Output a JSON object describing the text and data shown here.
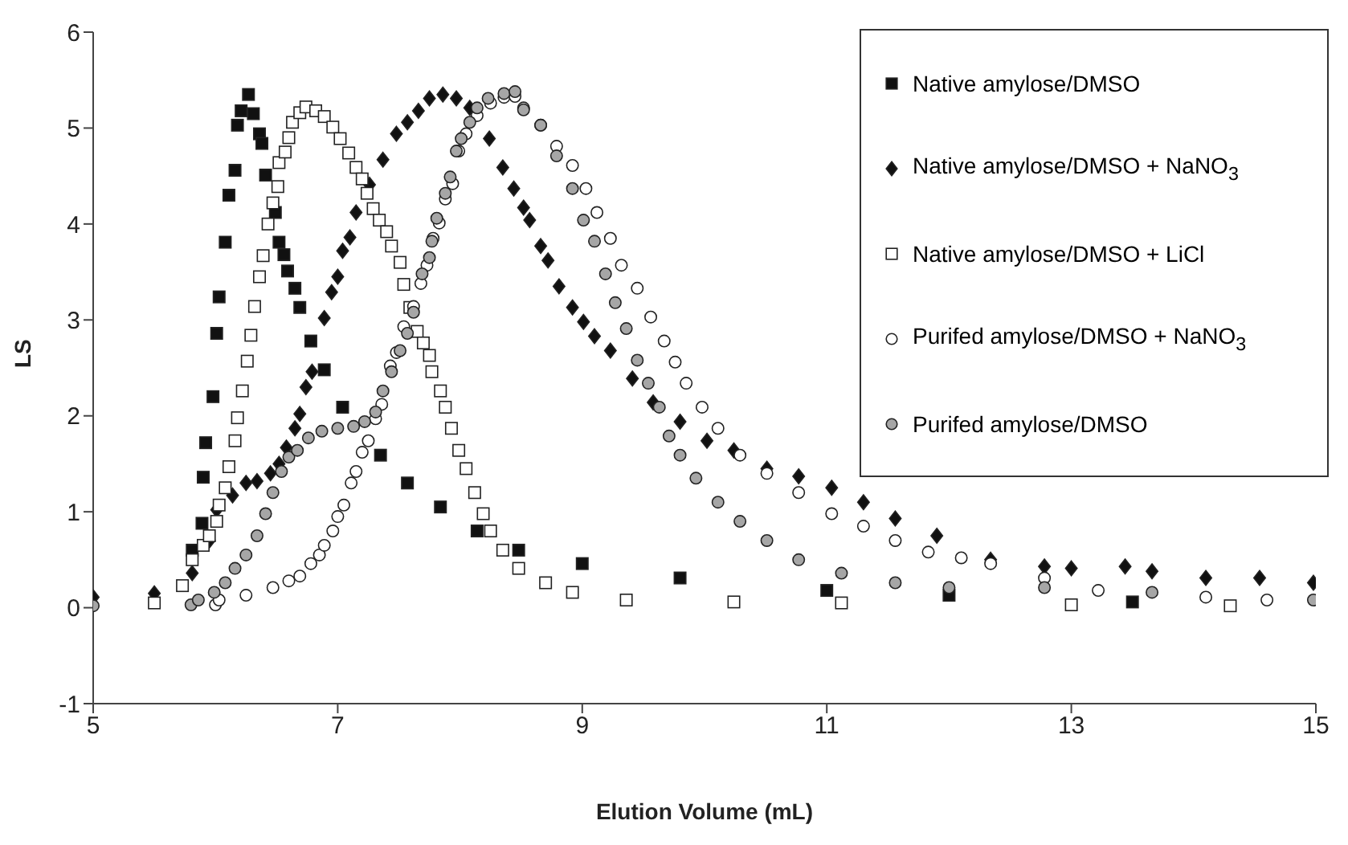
{
  "chart_data": {
    "type": "scatter",
    "xlabel": "Elution Volume (mL)",
    "ylabel": "LS",
    "xlim": [
      5,
      15
    ],
    "ylim": [
      -1,
      6
    ],
    "xticks": [
      5,
      7,
      9,
      11,
      13,
      15
    ],
    "yticks": [
      -1,
      0,
      1,
      2,
      3,
      4,
      5,
      6
    ],
    "grid": false,
    "legend": "top right",
    "series": [
      {
        "name": "Native amylose/DMSO",
        "color": "#111111",
        "marker": "square",
        "x": [
          5.81,
          5.89,
          5.9,
          5.92,
          5.98,
          6.01,
          6.03,
          6.08,
          6.11,
          6.16,
          6.18,
          6.21,
          6.27,
          6.31,
          6.36,
          6.38,
          6.41,
          6.47,
          6.49,
          6.52,
          6.56,
          6.59,
          6.65,
          6.69,
          6.78,
          6.89,
          7.04,
          7.2,
          7.35,
          7.57,
          7.84,
          8.14,
          8.48,
          9,
          9.8,
          11,
          12,
          13.5
        ],
        "values": [
          0.6,
          0.88,
          1.36,
          1.72,
          2.2,
          2.86,
          3.24,
          3.81,
          4.3,
          4.56,
          5.03,
          5.18,
          5.35,
          5.15,
          4.94,
          4.84,
          4.51,
          null,
          4.12,
          3.81,
          3.68,
          3.51,
          3.33,
          3.13,
          2.78,
          2.48,
          2.09,
          null,
          1.59,
          1.3,
          1.05,
          0.8,
          0.6,
          0.46,
          0.31,
          0.18,
          0.13,
          0.06
        ]
      },
      {
        "name": "Native amylose/DMSO + NaNO$_{3}$",
        "color": "#111111",
        "marker": "diamond",
        "x": [
          5,
          5.5,
          5.81,
          5.95,
          6.01,
          6.14,
          6.25,
          6.34,
          6.45,
          6.52,
          6.58,
          6.65,
          6.69,
          6.74,
          6.79,
          6.89,
          6.95,
          7,
          7.04,
          7.1,
          7.15,
          7.26,
          7.37,
          7.48,
          7.57,
          7.66,
          7.75,
          7.86,
          7.97,
          8.08,
          8.24,
          8.35,
          8.44,
          8.52,
          8.57,
          8.66,
          8.72,
          8.81,
          8.92,
          9.01,
          9.1,
          9.23,
          9.41,
          9.58,
          9.8,
          10.02,
          10.24,
          10.51,
          10.77,
          11.04,
          11.3,
          11.56,
          11.9,
          12.34,
          12.78,
          13,
          13.44,
          13.66,
          14.1,
          14.54,
          14.98
        ],
        "values": [
          0.11,
          0.15,
          0.36,
          0.7,
          1.02,
          1.17,
          1.3,
          1.32,
          1.4,
          1.5,
          1.67,
          1.87,
          2.02,
          2.3,
          2.46,
          3.02,
          3.29,
          3.45,
          3.72,
          3.86,
          4.12,
          4.41,
          4.67,
          4.94,
          5.06,
          5.18,
          5.31,
          5.35,
          5.31,
          5.21,
          4.89,
          4.59,
          4.37,
          4.17,
          4.04,
          3.77,
          3.62,
          3.35,
          3.13,
          2.98,
          2.83,
          2.68,
          2.39,
          2.14,
          1.94,
          1.74,
          1.64,
          1.45,
          1.37,
          1.25,
          1.1,
          0.93,
          0.75,
          0.5,
          0.43,
          0.41,
          0.43,
          0.38,
          0.31,
          0.31,
          0.26
        ]
      },
      {
        "name": "Native amylose/DMSO + LiCl",
        "color": "#ffffff",
        "marker": "square",
        "x": [
          5.5,
          5.73,
          5.81,
          5.9,
          5.95,
          6.01,
          6.03,
          6.08,
          6.11,
          6.16,
          6.18,
          6.22,
          6.26,
          6.29,
          6.32,
          6.36,
          6.39,
          6.43,
          6.47,
          6.51,
          6.52,
          6.57,
          6.6,
          6.63,
          6.69,
          6.74,
          6.82,
          6.89,
          6.96,
          7.02,
          7.09,
          7.15,
          7.2,
          7.24,
          7.29,
          7.34,
          7.4,
          7.44,
          7.51,
          7.54,
          7.59,
          7.65,
          7.7,
          7.75,
          7.77,
          7.84,
          7.88,
          7.93,
          7.99,
          8.05,
          8.12,
          8.19,
          8.25,
          8.35,
          8.48,
          8.7,
          8.92,
          9.36,
          10.24,
          11.12,
          13,
          14.3
        ],
        "values": [
          0.05,
          0.23,
          0.5,
          0.65,
          0.75,
          0.9,
          1.07,
          1.25,
          1.47,
          1.74,
          1.98,
          2.26,
          2.57,
          2.84,
          3.14,
          3.45,
          3.67,
          4,
          4.22,
          4.39,
          4.64,
          4.75,
          4.9,
          5.06,
          5.16,
          5.22,
          5.18,
          5.12,
          5.01,
          4.89,
          4.74,
          4.59,
          4.47,
          4.32,
          4.16,
          4.04,
          3.92,
          3.77,
          3.6,
          3.37,
          3.13,
          2.88,
          2.76,
          2.63,
          2.46,
          2.26,
          2.09,
          1.87,
          1.64,
          1.45,
          1.2,
          0.98,
          0.8,
          0.6,
          0.41,
          0.26,
          0.16,
          0.08,
          0.06,
          0.05,
          0.03,
          0.02
        ]
      },
      {
        "name": "Purifed amylose/DMSO + NaNO$_{3}$",
        "color": "#ffffff",
        "marker": "circle",
        "x": [
          6,
          6.03,
          6.25,
          6.47,
          6.6,
          6.69,
          6.78,
          6.85,
          6.89,
          6.96,
          7,
          7.05,
          7.11,
          7.15,
          7.2,
          7.25,
          7.31,
          7.36,
          7.43,
          7.48,
          7.54,
          7.62,
          7.68,
          7.73,
          7.78,
          7.83,
          7.88,
          7.94,
          7.99,
          8.05,
          8.14,
          8.25,
          8.36,
          8.45,
          8.52,
          8.66,
          8.79,
          8.92,
          9.03,
          9.12,
          9.23,
          9.32,
          9.45,
          9.56,
          9.67,
          9.76,
          9.85,
          9.98,
          10.11,
          10.29,
          10.51,
          10.77,
          11.04,
          11.3,
          11.56,
          11.83,
          12.1,
          12.34,
          12.78,
          13.22,
          14.1,
          14.6
        ],
        "values": [
          0.03,
          0.08,
          0.13,
          0.21,
          0.28,
          0.33,
          0.46,
          0.55,
          0.65,
          0.8,
          0.95,
          1.07,
          1.3,
          1.42,
          1.62,
          1.74,
          1.97,
          2.12,
          2.52,
          2.66,
          2.93,
          3.14,
          3.38,
          3.57,
          3.85,
          4.01,
          4.26,
          4.42,
          4.76,
          4.94,
          5.13,
          5.26,
          5.32,
          5.33,
          5.21,
          5.03,
          4.81,
          4.61,
          4.37,
          4.12,
          3.85,
          3.57,
          3.33,
          3.03,
          2.78,
          2.56,
          2.34,
          2.09,
          1.87,
          1.59,
          1.4,
          1.2,
          0.98,
          0.85,
          0.7,
          0.58,
          0.52,
          0.46,
          0.31,
          0.18,
          0.11,
          0.08
        ]
      },
      {
        "name": "Purifed amylose/DMSO",
        "color": "#a6a6a6",
        "marker": "circle",
        "x": [
          5,
          5.8,
          5.86,
          5.99,
          6.08,
          6.16,
          6.25,
          6.34,
          6.41,
          6.47,
          6.54,
          6.6,
          6.67,
          6.76,
          6.87,
          7,
          7.13,
          7.22,
          7.31,
          7.37,
          7.44,
          7.51,
          7.57,
          7.62,
          7.69,
          7.75,
          7.77,
          7.81,
          7.88,
          7.92,
          7.97,
          8.01,
          8.08,
          8.14,
          8.23,
          8.36,
          8.45,
          8.52,
          8.66,
          8.79,
          8.92,
          9.01,
          9.1,
          9.19,
          9.27,
          9.36,
          9.45,
          9.54,
          9.63,
          9.71,
          9.8,
          9.93,
          10.11,
          10.29,
          10.51,
          10.77,
          11.12,
          11.56,
          12,
          12.78,
          13.66,
          14.98
        ],
        "values": [
          0.02,
          0.03,
          0.08,
          0.16,
          0.26,
          0.41,
          0.55,
          0.75,
          0.98,
          1.2,
          1.42,
          1.57,
          1.64,
          1.77,
          1.84,
          1.87,
          1.89,
          1.94,
          2.04,
          2.26,
          2.46,
          2.68,
          2.86,
          3.08,
          3.48,
          3.65,
          3.82,
          4.06,
          4.32,
          4.49,
          4.76,
          4.89,
          5.06,
          5.21,
          5.31,
          5.36,
          5.38,
          5.19,
          5.03,
          4.71,
          4.37,
          4.04,
          3.82,
          3.48,
          3.18,
          2.91,
          2.58,
          2.34,
          2.09,
          1.79,
          1.59,
          1.35,
          1.1,
          0.9,
          0.7,
          0.5,
          0.36,
          0.26,
          0.21,
          0.21,
          0.16,
          0.08
        ]
      }
    ]
  }
}
